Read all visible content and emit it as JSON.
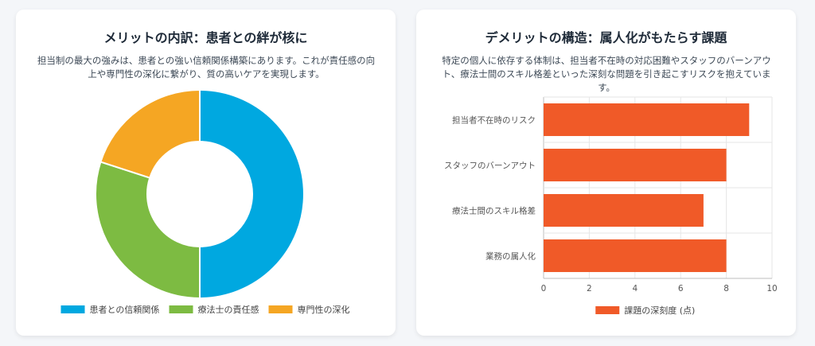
{
  "left_card": {
    "title": "メリットの内訳：患者との絆が核に",
    "description": "担当制の最大の強みは、患者との強い信頼関係構築にあります。これが責任感の向上や専門性の深化に繋がり、質の高いケアを実現します。"
  },
  "right_card": {
    "title": "デメリットの構造：属人化がもたらす課題",
    "description": "特定の個人に依存する体制は、担当者不在時の対応困難やスタッフのバーンアウト、療法士間のスキル格差といった深刻な問題を引き起こすリスクを抱えています。"
  },
  "chart_data": [
    {
      "type": "pie",
      "donut": true,
      "categories": [
        "患者との信頼関係",
        "療法士の責任感",
        "専門性の深化"
      ],
      "values": [
        50,
        30,
        20
      ],
      "colors": [
        "#00a8e0",
        "#7dbb42",
        "#f5a623"
      ],
      "legend": "bottom"
    },
    {
      "type": "bar",
      "orientation": "horizontal",
      "categories": [
        "担当者不在時のリスク",
        "スタッフのバーンアウト",
        "療法士間のスキル格差",
        "業務の属人化"
      ],
      "series": [
        {
          "name": "課題の深刻度 (点)",
          "values": [
            9,
            8,
            7,
            8
          ],
          "color": "#f05a28"
        }
      ],
      "xlim": [
        0,
        10
      ],
      "xticks": [
        "0",
        "2",
        "4",
        "6",
        "8",
        "10"
      ],
      "grid": true,
      "legend": "bottom"
    }
  ]
}
